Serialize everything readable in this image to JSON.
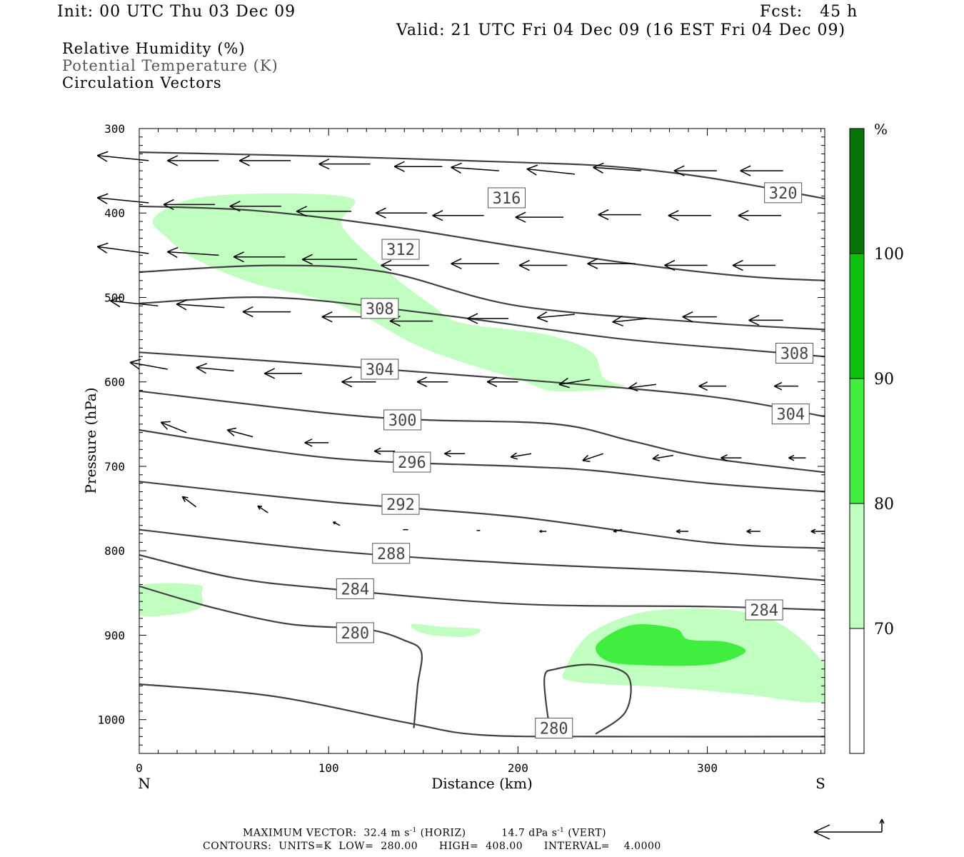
{
  "header": {
    "init": "Init: 00 UTC Thu 03 Dec 09",
    "fcst": "Fcst:   45 h",
    "valid": "Valid: 21 UTC Fri 04 Dec 09 (16 EST Fri 04 Dec 09)"
  },
  "fields": [
    "Relative Humidity (%)",
    "Potential Temperature (K)",
    "Circulation Vectors"
  ],
  "colors": {
    "rh_70_80": "#c0ffc0",
    "rh_80_90": "#40ee40",
    "rh_90_100": "#10c010",
    "rh_100_plus": "#087508",
    "contour": "#404040"
  },
  "footer": {
    "max_vector_label": "MAXIMUM VECTOR:",
    "max_horiz": "32.4 m s",
    "max_horiz_unit": "(HORIZ)",
    "max_vert": "14.7 dPa s",
    "max_vert_unit": "(VERT)",
    "exp": "-1",
    "contours_line": "CONTOURS:  UNITS=K  LOW=  280.00      HIGH=  408.00      INTERVAL=    4.0000"
  },
  "chart_data": {
    "type": "cross-section",
    "xlabel": "Distance (km)",
    "ylabel": "Pressure (hPa)",
    "xlim": [
      0,
      362
    ],
    "ylim": [
      1040,
      300
    ],
    "x_ticks": [
      0,
      100,
      200,
      300
    ],
    "y_ticks": [
      300,
      400,
      500,
      600,
      700,
      800,
      900,
      1000
    ],
    "x_end_labels": {
      "left": "N",
      "right": "S"
    },
    "colorbar": {
      "unit": "%",
      "levels": [
        70,
        80,
        90,
        100
      ],
      "colors": [
        "#ffffff",
        "#c0ffc0",
        "#40ee40",
        "#10c010",
        "#087508"
      ]
    },
    "theta_contours": [
      {
        "value": 320,
        "points": [
          [
            0,
            328
          ],
          [
            100,
            333
          ],
          [
            200,
            340
          ],
          [
            250,
            345
          ],
          [
            300,
            358
          ],
          [
            362,
            383
          ]
        ],
        "labels": [
          {
            "x": 340,
            "p": 376
          }
        ]
      },
      {
        "value": 316,
        "points": [
          [
            0,
            392
          ],
          [
            60,
            397
          ],
          [
            130,
            415
          ],
          [
            200,
            440
          ],
          [
            260,
            460
          ],
          [
            320,
            475
          ],
          [
            362,
            480
          ]
        ],
        "labels": [
          {
            "x": 194,
            "p": 382
          }
        ]
      },
      {
        "value": 312,
        "points": [
          [
            0,
            470
          ],
          [
            70,
            462
          ],
          [
            130,
            470
          ],
          [
            200,
            510
          ],
          [
            300,
            530
          ],
          [
            362,
            538
          ]
        ],
        "labels": [
          {
            "x": 138,
            "p": 443
          }
        ]
      },
      {
        "value": 308,
        "points": [
          [
            0,
            507
          ],
          [
            70,
            500
          ],
          [
            150,
            518
          ],
          [
            250,
            548
          ],
          [
            320,
            562
          ],
          [
            362,
            570
          ]
        ],
        "labels": [
          {
            "x": 127,
            "p": 513
          },
          {
            "x": 346,
            "p": 566
          }
        ]
      },
      {
        "value": 304,
        "points": [
          [
            0,
            565
          ],
          [
            100,
            580
          ],
          [
            200,
            597
          ],
          [
            300,
            617
          ],
          [
            362,
            641
          ]
        ],
        "labels": [
          {
            "x": 127,
            "p": 585
          },
          {
            "x": 344,
            "p": 638
          }
        ]
      },
      {
        "value": 300,
        "points": [
          [
            0,
            611
          ],
          [
            100,
            637
          ],
          [
            150,
            645
          ],
          [
            220,
            650
          ],
          [
            260,
            670
          ],
          [
            300,
            690
          ],
          [
            362,
            707
          ]
        ],
        "labels": [
          {
            "x": 139,
            "p": 645
          }
        ]
      },
      {
        "value": 296,
        "points": [
          [
            0,
            657
          ],
          [
            100,
            690
          ],
          [
            200,
            700
          ],
          [
            240,
            705
          ],
          [
            300,
            720
          ],
          [
            362,
            730
          ]
        ],
        "labels": [
          {
            "x": 144,
            "p": 695
          }
        ]
      },
      {
        "value": 292,
        "points": [
          [
            0,
            718
          ],
          [
            100,
            742
          ],
          [
            200,
            760
          ],
          [
            300,
            790
          ],
          [
            362,
            797
          ]
        ],
        "labels": [
          {
            "x": 138,
            "p": 745
          }
        ]
      },
      {
        "value": 288,
        "points": [
          [
            0,
            775
          ],
          [
            100,
            800
          ],
          [
            200,
            815
          ],
          [
            300,
            825
          ],
          [
            362,
            835
          ]
        ],
        "labels": [
          {
            "x": 133,
            "p": 803
          }
        ]
      },
      {
        "value": 284,
        "points": [
          [
            0,
            805
          ],
          [
            50,
            832
          ],
          [
            100,
            845
          ],
          [
            200,
            863
          ],
          [
            300,
            866
          ],
          [
            362,
            870
          ]
        ],
        "labels": [
          {
            "x": 114,
            "p": 845
          },
          {
            "x": 330,
            "p": 870
          }
        ]
      },
      {
        "value": 280,
        "points": [
          [
            0,
            842
          ],
          [
            40,
            868
          ],
          [
            80,
            887
          ],
          [
            120,
            893
          ],
          [
            140,
            906
          ],
          [
            149,
            920
          ],
          [
            147,
            960
          ],
          [
            145,
            1010
          ]
        ],
        "labels": [
          {
            "x": 114,
            "p": 897
          },
          {
            "x": 219,
            "p": 1010
          }
        ]
      },
      {
        "value": 280,
        "points": [
          [
            0,
            958
          ],
          [
            70,
            972
          ],
          [
            140,
            1003
          ],
          [
            180,
            1018
          ],
          [
            250,
            1020
          ],
          [
            362,
            1020
          ]
        ],
        "labels": []
      },
      {
        "value": 280,
        "points": [
          [
            241,
            1017
          ],
          [
            257,
            990
          ],
          [
            258,
            948
          ],
          [
            240,
            935
          ],
          [
            220,
            940
          ],
          [
            214,
            950
          ],
          [
            216,
            1000
          ],
          [
            218,
            1020
          ]
        ],
        "labels": []
      }
    ],
    "rh_regions": [
      {
        "level": "70-80",
        "points": [
          [
            8,
            405
          ],
          [
            37,
            380
          ],
          [
            110,
            381
          ],
          [
            107,
            415
          ],
          [
            130,
            467
          ],
          [
            155,
            510
          ],
          [
            170,
            530
          ],
          [
            215,
            544
          ],
          [
            239,
            565
          ],
          [
            245,
            595
          ],
          [
            255,
            606
          ],
          [
            220,
            611
          ],
          [
            200,
            597
          ],
          [
            150,
            560
          ],
          [
            107,
            510
          ],
          [
            60,
            483
          ],
          [
            30,
            455
          ],
          [
            15,
            430
          ]
        ]
      },
      {
        "level": "70-80",
        "points": [
          [
            0,
            842
          ],
          [
            30,
            840
          ],
          [
            33,
            850
          ],
          [
            30,
            870
          ],
          [
            0,
            876
          ]
        ]
      },
      {
        "level": "70-80",
        "points": [
          [
            144,
            887
          ],
          [
            160,
            890
          ],
          [
            180,
            893
          ],
          [
            172,
            902
          ],
          [
            150,
            898
          ]
        ]
      },
      {
        "level": "70-80",
        "points": [
          [
            225,
            940
          ],
          [
            240,
            895
          ],
          [
            275,
            870
          ],
          [
            330,
            878
          ],
          [
            362,
            935
          ],
          [
            362,
            978
          ],
          [
            320,
            970
          ],
          [
            280,
            962
          ],
          [
            230,
            955
          ]
        ]
      },
      {
        "level": "80-90",
        "points": [
          [
            242,
            910
          ],
          [
            260,
            888
          ],
          [
            283,
            892
          ],
          [
            290,
            905
          ],
          [
            310,
            908
          ],
          [
            320,
            920
          ],
          [
            300,
            935
          ],
          [
            260,
            935
          ],
          [
            245,
            928
          ]
        ]
      }
    ],
    "vectors": [
      {
        "x": 5,
        "p": 338,
        "u": -30,
        "w": 3
      },
      {
        "x": 42,
        "p": 338,
        "u": -30,
        "w": 0
      },
      {
        "x": 80,
        "p": 338,
        "u": -30,
        "w": 0
      },
      {
        "x": 122,
        "p": 342,
        "u": -30,
        "w": 0
      },
      {
        "x": 160,
        "p": 345,
        "u": -28,
        "w": 0
      },
      {
        "x": 190,
        "p": 350,
        "u": -28,
        "w": 2
      },
      {
        "x": 230,
        "p": 354,
        "u": -28,
        "w": 3
      },
      {
        "x": 265,
        "p": 350,
        "u": -28,
        "w": 2
      },
      {
        "x": 305,
        "p": 350,
        "u": -25,
        "w": 0
      },
      {
        "x": 340,
        "p": 350,
        "u": -25,
        "w": 0
      },
      {
        "x": 5,
        "p": 388,
        "u": -30,
        "w": 3
      },
      {
        "x": 40,
        "p": 390,
        "u": -30,
        "w": 0
      },
      {
        "x": 75,
        "p": 392,
        "u": -30,
        "w": 0
      },
      {
        "x": 112,
        "p": 398,
        "u": -32,
        "w": 0
      },
      {
        "x": 152,
        "p": 400,
        "u": -30,
        "w": 0
      },
      {
        "x": 182,
        "p": 403,
        "u": -30,
        "w": 0
      },
      {
        "x": 224,
        "p": 405,
        "u": -28,
        "w": 0
      },
      {
        "x": 265,
        "p": 402,
        "u": -25,
        "w": 0
      },
      {
        "x": 302,
        "p": 403,
        "u": -25,
        "w": 0
      },
      {
        "x": 339,
        "p": 403,
        "u": -25,
        "w": 0
      },
      {
        "x": 5,
        "p": 448,
        "u": -30,
        "w": 4
      },
      {
        "x": 42,
        "p": 450,
        "u": -30,
        "w": 2
      },
      {
        "x": 77,
        "p": 452,
        "u": -30,
        "w": 0
      },
      {
        "x": 115,
        "p": 455,
        "u": -32,
        "w": 0
      },
      {
        "x": 153,
        "p": 462,
        "u": -28,
        "w": 0
      },
      {
        "x": 190,
        "p": 460,
        "u": -28,
        "w": 0
      },
      {
        "x": 226,
        "p": 462,
        "u": -28,
        "w": 0
      },
      {
        "x": 262,
        "p": 460,
        "u": -28,
        "w": 0
      },
      {
        "x": 300,
        "p": 462,
        "u": -25,
        "w": 0
      },
      {
        "x": 336,
        "p": 462,
        "u": -25,
        "w": 0
      },
      {
        "x": 10,
        "p": 510,
        "u": -28,
        "w": 3
      },
      {
        "x": 45,
        "p": 512,
        "u": -28,
        "w": 2
      },
      {
        "x": 80,
        "p": 517,
        "u": -28,
        "w": 0
      },
      {
        "x": 120,
        "p": 523,
        "u": -26,
        "w": 0
      },
      {
        "x": 155,
        "p": 528,
        "u": -25,
        "w": 0
      },
      {
        "x": 195,
        "p": 525,
        "u": -24,
        "w": 0
      },
      {
        "x": 230,
        "p": 520,
        "u": -22,
        "w": -2
      },
      {
        "x": 268,
        "p": 525,
        "u": -20,
        "w": -2
      },
      {
        "x": 305,
        "p": 523,
        "u": -20,
        "w": 0
      },
      {
        "x": 340,
        "p": 527,
        "u": -20,
        "w": 0
      },
      {
        "x": 15,
        "p": 585,
        "u": -22,
        "w": 4
      },
      {
        "x": 50,
        "p": 587,
        "u": -22,
        "w": 2
      },
      {
        "x": 86,
        "p": 590,
        "u": -22,
        "w": 0
      },
      {
        "x": 125,
        "p": 600,
        "u": -20,
        "w": 0
      },
      {
        "x": 163,
        "p": 600,
        "u": -18,
        "w": 0
      },
      {
        "x": 200,
        "p": 600,
        "u": -18,
        "w": 0
      },
      {
        "x": 238,
        "p": 597,
        "u": -18,
        "w": -3
      },
      {
        "x": 273,
        "p": 603,
        "u": -16,
        "w": -2
      },
      {
        "x": 310,
        "p": 605,
        "u": -16,
        "w": 0
      },
      {
        "x": 348,
        "p": 605,
        "u": -14,
        "w": 0
      },
      {
        "x": 25,
        "p": 660,
        "u": -15,
        "w": 6
      },
      {
        "x": 60,
        "p": 665,
        "u": -15,
        "w": 4
      },
      {
        "x": 100,
        "p": 672,
        "u": -14,
        "w": 0
      },
      {
        "x": 135,
        "p": 682,
        "u": -12,
        "w": 0
      },
      {
        "x": 172,
        "p": 685,
        "u": -12,
        "w": 0
      },
      {
        "x": 207,
        "p": 685,
        "u": -12,
        "w": -2
      },
      {
        "x": 245,
        "p": 685,
        "u": -12,
        "w": -4
      },
      {
        "x": 282,
        "p": 687,
        "u": -12,
        "w": -2
      },
      {
        "x": 318,
        "p": 690,
        "u": -12,
        "w": 0
      },
      {
        "x": 352,
        "p": 690,
        "u": -10,
        "w": 0
      },
      {
        "x": 30,
        "p": 748,
        "u": -8,
        "w": 6
      },
      {
        "x": 68,
        "p": 755,
        "u": -6,
        "w": 4
      },
      {
        "x": 106,
        "p": 770,
        "u": -4,
        "w": 2
      },
      {
        "x": 142,
        "p": 775,
        "u": -3,
        "w": 0
      },
      {
        "x": 180,
        "p": 776,
        "u": -2,
        "w": 0
      },
      {
        "x": 215,
        "p": 777,
        "u": -4,
        "w": 0
      },
      {
        "x": 255,
        "p": 775,
        "u": -5,
        "w": -1
      },
      {
        "x": 290,
        "p": 777,
        "u": -7,
        "w": 0
      },
      {
        "x": 328,
        "p": 777,
        "u": -8,
        "w": 0
      },
      {
        "x": 362,
        "p": 777,
        "u": -8,
        "w": 0
      }
    ],
    "footer_ref_vector": {
      "u": -32.4,
      "w": 14.7
    }
  }
}
